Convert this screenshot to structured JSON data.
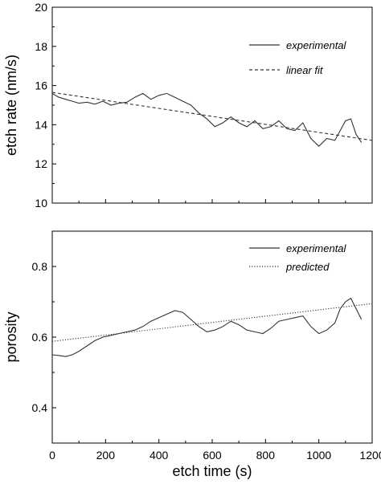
{
  "chart_data": [
    {
      "type": "line",
      "title": "",
      "xlabel": "",
      "ylabel": "etch rate (nm/s)",
      "xlim": [
        0,
        1200
      ],
      "ylim": [
        10,
        20
      ],
      "yticks": [
        "10",
        "12",
        "14",
        "16",
        "18",
        "20"
      ],
      "grid": false,
      "legend_position": "top-right",
      "series": [
        {
          "name": "experimental",
          "style": "solid",
          "color": "#333333",
          "x": [
            0,
            25,
            50,
            75,
            100,
            130,
            160,
            190,
            220,
            250,
            280,
            310,
            340,
            370,
            400,
            430,
            460,
            490,
            520,
            550,
            580,
            610,
            640,
            670,
            700,
            730,
            760,
            790,
            820,
            850,
            880,
            910,
            940,
            970,
            1000,
            1030,
            1060,
            1080,
            1100,
            1120,
            1140,
            1160
          ],
          "y": [
            15.6,
            15.4,
            15.3,
            15.2,
            15.1,
            15.15,
            15.05,
            15.2,
            15.0,
            15.1,
            15.15,
            15.4,
            15.6,
            15.3,
            15.5,
            15.6,
            15.4,
            15.2,
            15.0,
            14.6,
            14.3,
            13.9,
            14.1,
            14.4,
            14.1,
            13.9,
            14.2,
            13.8,
            13.9,
            14.2,
            13.8,
            13.7,
            14.1,
            13.3,
            12.9,
            13.3,
            13.2,
            13.7,
            14.2,
            14.3,
            13.5,
            13.1
          ]
        },
        {
          "name": "linear fit",
          "style": "dashed",
          "color": "#333333",
          "x": [
            0,
            1200
          ],
          "y": [
            15.65,
            13.2
          ]
        }
      ]
    },
    {
      "type": "line",
      "title": "",
      "xlabel": "etch time (s)",
      "ylabel": "porosity",
      "xlim": [
        0,
        1200
      ],
      "ylim": [
        0.3,
        0.9
      ],
      "xticks": [
        "0",
        "200",
        "400",
        "600",
        "800",
        "1000",
        "1200"
      ],
      "yticks": [
        "0.4",
        "0.6",
        "0.8"
      ],
      "grid": false,
      "legend_position": "top-right",
      "series": [
        {
          "name": "experimental",
          "style": "solid",
          "color": "#333333",
          "x": [
            0,
            25,
            50,
            75,
            100,
            130,
            160,
            190,
            220,
            250,
            280,
            310,
            340,
            370,
            400,
            430,
            460,
            490,
            520,
            550,
            580,
            610,
            640,
            670,
            700,
            730,
            760,
            790,
            820,
            850,
            880,
            910,
            940,
            970,
            1000,
            1030,
            1060,
            1080,
            1100,
            1120,
            1140,
            1160
          ],
          "y": [
            0.55,
            0.548,
            0.545,
            0.55,
            0.56,
            0.575,
            0.59,
            0.6,
            0.605,
            0.61,
            0.615,
            0.62,
            0.63,
            0.645,
            0.655,
            0.665,
            0.675,
            0.67,
            0.65,
            0.63,
            0.615,
            0.62,
            0.63,
            0.645,
            0.635,
            0.62,
            0.615,
            0.61,
            0.625,
            0.645,
            0.65,
            0.655,
            0.66,
            0.63,
            0.61,
            0.62,
            0.64,
            0.68,
            0.7,
            0.71,
            0.68,
            0.65
          ]
        },
        {
          "name": "predicted",
          "style": "dotted",
          "color": "#333333",
          "x": [
            0,
            1200
          ],
          "y": [
            0.588,
            0.695
          ]
        }
      ]
    }
  ]
}
